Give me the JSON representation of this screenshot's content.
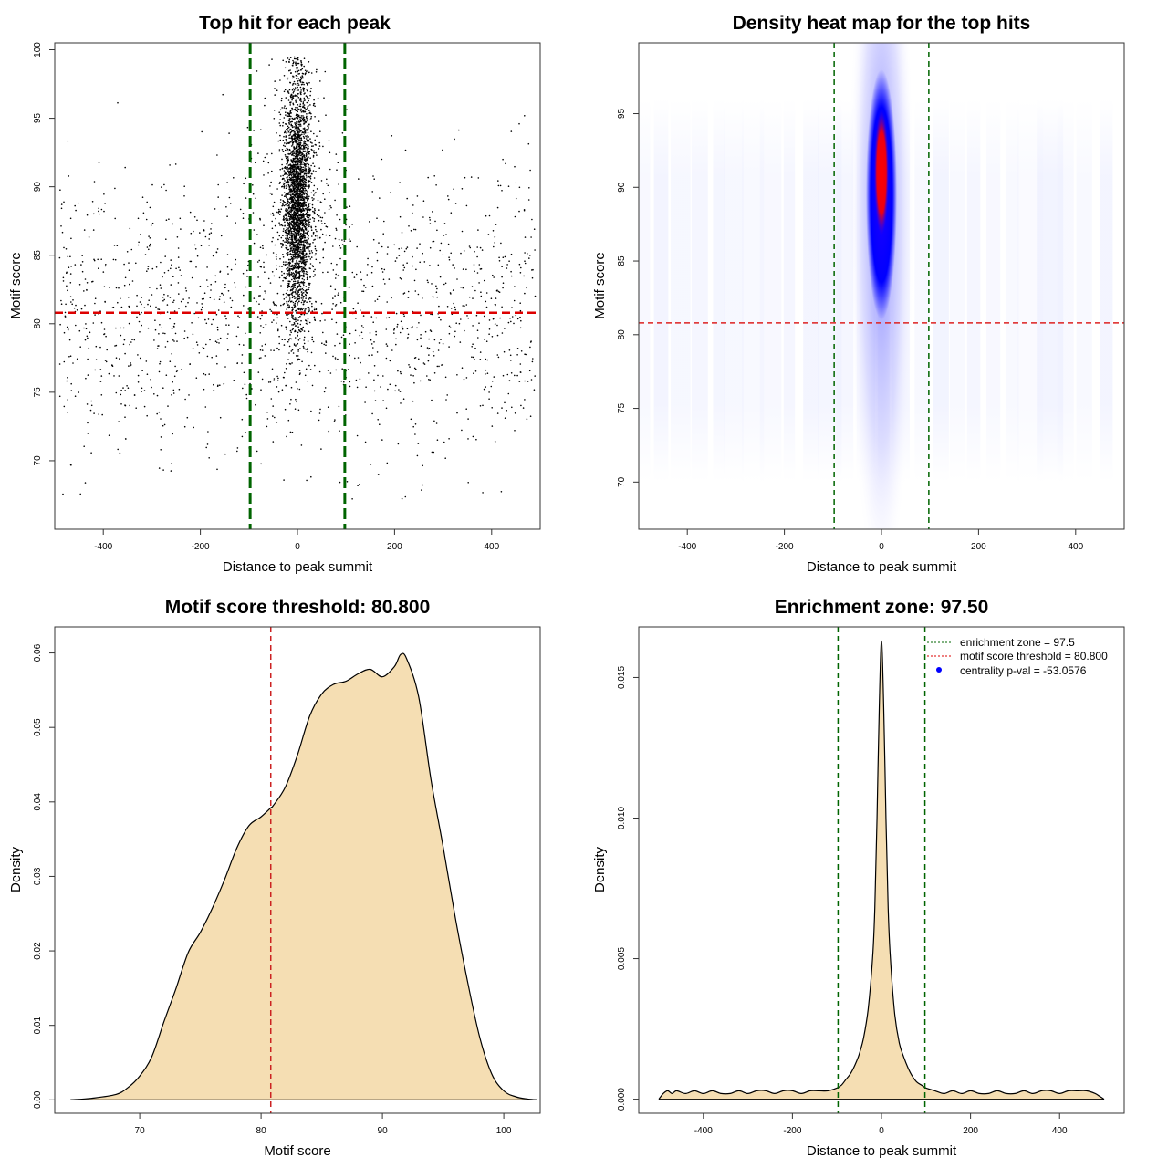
{
  "chart_data": [
    {
      "type": "scatter",
      "title": "Top hit for each peak",
      "xlabel": "Distance to peak summit",
      "ylabel": "Motif score",
      "xlim": [
        -500,
        500
      ],
      "ylim": [
        65,
        100.5
      ],
      "xticks": [
        -400,
        -200,
        0,
        200,
        400
      ],
      "yticks": [
        70,
        75,
        80,
        85,
        90,
        95,
        100
      ],
      "threshold_y": 80.8,
      "zone_x": [
        -97.5,
        97.5
      ],
      "threshold_color": "#dd0000",
      "zone_color": "#006400",
      "point_color": "#000000",
      "point_summary": {
        "central_cluster": {
          "x_center": 0,
          "x_spread": 20,
          "y_range": [
            72,
            99.5
          ]
        },
        "background": {
          "x_range": [
            -490,
            490
          ],
          "y_range": [
            67,
            99
          ]
        }
      }
    },
    {
      "type": "heatmap",
      "title": "Density heat map for the top hits",
      "xlabel": "Distance to peak summit",
      "ylabel": "Motif score",
      "xlim": [
        -500,
        500
      ],
      "ylim": [
        66.8,
        99.8
      ],
      "xticks": [
        -400,
        -200,
        0,
        200,
        400
      ],
      "yticks": [
        70,
        75,
        80,
        85,
        90,
        95
      ],
      "threshold_y": 80.8,
      "zone_x": [
        -97.5,
        97.5
      ],
      "colorscale": [
        "#ffffff",
        "#0000ff",
        "#ff0000"
      ],
      "hotspot": {
        "x": 0,
        "y": 91
      }
    },
    {
      "type": "area",
      "title": "Motif score threshold: 80.800",
      "xlabel": "Motif score",
      "ylabel": "Density",
      "xlim": [
        63,
        103
      ],
      "ylim": [
        -0.0018,
        0.0635
      ],
      "xticks": [
        70,
        80,
        90,
        100
      ],
      "yticks": [
        "0.00",
        "0.01",
        "0.02",
        "0.03",
        "0.04",
        "0.05",
        "0.06"
      ],
      "threshold_x": 80.8,
      "fill": "#f5deb3",
      "x": [
        64.3,
        66,
        68,
        69,
        70,
        71,
        72,
        73,
        74,
        75,
        76,
        77,
        78,
        79,
        80,
        80.8,
        81,
        82,
        83,
        84,
        85,
        86,
        87,
        88,
        89,
        90,
        91,
        91.5,
        92,
        93,
        94,
        95,
        96,
        97,
        98,
        99,
        100,
        101,
        102,
        102.7
      ],
      "y": [
        0,
        0.0002,
        0.0007,
        0.0016,
        0.0032,
        0.0058,
        0.0105,
        0.015,
        0.0198,
        0.0225,
        0.0258,
        0.0296,
        0.0338,
        0.0368,
        0.038,
        0.0392,
        0.0395,
        0.042,
        0.0463,
        0.0515,
        0.0545,
        0.0558,
        0.0562,
        0.0572,
        0.0578,
        0.0568,
        0.0582,
        0.0598,
        0.0592,
        0.054,
        0.043,
        0.034,
        0.0245,
        0.016,
        0.0085,
        0.0035,
        0.0012,
        0.0004,
        0.0001,
        0
      ],
      "series_name": "motif score density"
    },
    {
      "type": "area",
      "title": "Enrichment zone: 97.50",
      "xlabel": "Distance to peak summit",
      "ylabel": "Density",
      "xlim": [
        -545,
        545
      ],
      "ylim": [
        -0.0005,
        0.0168
      ],
      "xticks": [
        -400,
        -200,
        0,
        200,
        400
      ],
      "yticks": [
        "0.000",
        "0.005",
        "0.010",
        "0.015"
      ],
      "zone_x": [
        -97.5,
        97.5
      ],
      "fill": "#f5deb3",
      "x": [
        -500,
        -490,
        -480,
        -470,
        -460,
        -440,
        -420,
        -400,
        -380,
        -360,
        -340,
        -320,
        -300,
        -280,
        -260,
        -240,
        -220,
        -200,
        -180,
        -160,
        -140,
        -120,
        -100,
        -90,
        -80,
        -70,
        -60,
        -50,
        -40,
        -30,
        -20,
        -15,
        -10,
        -5,
        0,
        5,
        10,
        15,
        20,
        30,
        40,
        50,
        60,
        70,
        80,
        90,
        100,
        120,
        140,
        160,
        180,
        200,
        220,
        240,
        260,
        280,
        300,
        320,
        340,
        360,
        380,
        400,
        420,
        440,
        460,
        480,
        490,
        500
      ],
      "y": [
        0,
        0.0002,
        0.0003,
        0.0002,
        0.0003,
        0.0002,
        0.0003,
        0.0002,
        0.0003,
        0.0002,
        0.0002,
        0.0003,
        0.0002,
        0.0003,
        0.0003,
        0.0002,
        0.0003,
        0.0003,
        0.0002,
        0.0003,
        0.0003,
        0.0003,
        0.0004,
        0.0005,
        0.0007,
        0.0009,
        0.0012,
        0.0016,
        0.0022,
        0.0032,
        0.005,
        0.0068,
        0.01,
        0.014,
        0.0163,
        0.014,
        0.01,
        0.0068,
        0.005,
        0.003,
        0.002,
        0.0015,
        0.0011,
        0.0008,
        0.0006,
        0.0005,
        0.0004,
        0.0003,
        0.0002,
        0.0003,
        0.0002,
        0.0003,
        0.0002,
        0.0002,
        0.0003,
        0.0002,
        0.0002,
        0.0003,
        0.0002,
        0.0003,
        0.0003,
        0.0002,
        0.0003,
        0.0003,
        0.0003,
        0.0002,
        0.0001,
        0
      ],
      "legend": {
        "position": "top-right",
        "entries": [
          {
            "label": "enrichment zone = 97.5",
            "color": "#006400",
            "symbol": "dotted-line"
          },
          {
            "label": "motif score threshold = 80.800",
            "color": "#dd0000",
            "symbol": "dotted-line"
          },
          {
            "label": "centrality p-val = -53.0576",
            "color": "#0000ff",
            "symbol": "dot"
          }
        ]
      }
    }
  ]
}
